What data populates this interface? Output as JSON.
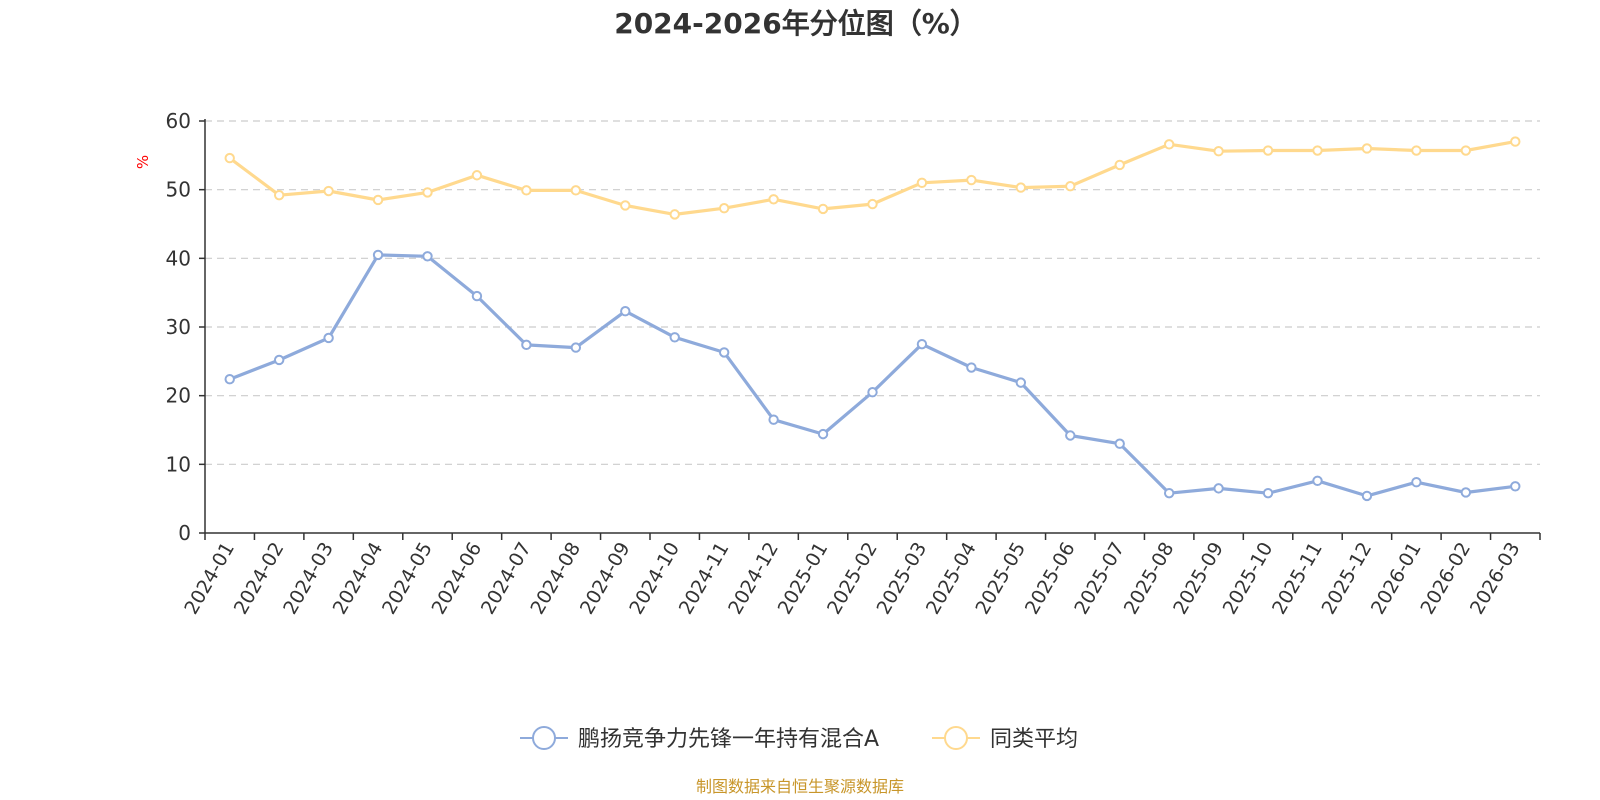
{
  "chart_data": {
    "type": "line",
    "title": "2024-2026年分位图（%）",
    "xlabel": "",
    "ylabel": "%",
    "ylim": [
      0,
      60
    ],
    "yticks": [
      0,
      10,
      20,
      30,
      40,
      50,
      60
    ],
    "grid": true,
    "legend_position": "bottom",
    "categories": [
      "2024-01",
      "2024-02",
      "2024-03",
      "2024-04",
      "2024-05",
      "2024-06",
      "2024-07",
      "2024-08",
      "2024-09",
      "2024-10",
      "2024-11",
      "2024-12",
      "2025-01",
      "2025-02",
      "2025-03",
      "2025-04",
      "2025-05",
      "2025-06",
      "2025-07",
      "2025-08",
      "2025-09",
      "2025-10",
      "2025-11",
      "2025-12",
      "2026-01",
      "2026-02",
      "2026-03"
    ],
    "series": [
      {
        "name": "鹏扬竞争力先锋一年持有混合A",
        "color": "#8eaadb",
        "values": [
          22.4,
          25.2,
          28.4,
          40.5,
          40.3,
          34.5,
          27.4,
          27.0,
          32.3,
          28.5,
          26.3,
          16.5,
          14.4,
          20.5,
          27.5,
          24.1,
          21.9,
          14.2,
          13.0,
          5.8,
          6.5,
          5.8,
          7.6,
          5.4,
          7.4,
          5.9,
          6.8
        ]
      },
      {
        "name": "同类平均",
        "color": "#ffd98e",
        "values": [
          54.6,
          49.2,
          49.8,
          48.5,
          49.6,
          52.1,
          49.9,
          49.9,
          47.7,
          46.4,
          47.3,
          48.6,
          47.2,
          47.9,
          51.0,
          51.4,
          50.3,
          50.5,
          53.6,
          56.6,
          55.6,
          55.7,
          55.7,
          56.0,
          55.7,
          55.7,
          57.0
        ]
      }
    ]
  },
  "source": {
    "text": "制图数据来自恒生聚源数据库",
    "color": "#c8962a"
  }
}
